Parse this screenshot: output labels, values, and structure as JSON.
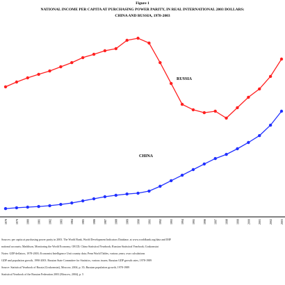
{
  "chart_data": {
    "type": "line",
    "figure_label": "Figure 1",
    "title": "NATIONAL INCOME PER CAPITA AT PURCHASING POWER PARITY, IN REAL INTERNATIONAL 2003 DOLLARS:",
    "subtitle": "CHINA AND RUSSIA, 1978-2003",
    "categories": [
      "1978",
      "1979",
      "1980",
      "1981",
      "1982",
      "1983",
      "1984",
      "1985",
      "1986",
      "1987",
      "1988",
      "1989",
      "1990",
      "1991",
      "1992",
      "1993",
      "1994",
      "1995",
      "1996",
      "1997",
      "1998",
      "1999",
      "2000",
      "2001",
      "2002",
      "2003"
    ],
    "series": [
      {
        "name": "RUSSIA",
        "color": "#ff2020",
        "values": [
          6170,
          6400,
          6600,
          6770,
          6930,
          7130,
          7330,
          7570,
          7730,
          7900,
          8000,
          8400,
          8500,
          8270,
          7330,
          6330,
          5330,
          5070,
          4930,
          5000,
          4670,
          5170,
          5670,
          6070,
          6670,
          7500
        ]
      },
      {
        "name": "CHINA",
        "color": "#2030ff",
        "values": [
          330,
          370,
          400,
          430,
          470,
          530,
          600,
          700,
          800,
          900,
          970,
          1030,
          1070,
          1170,
          1400,
          1670,
          1930,
          2200,
          2470,
          2730,
          2930,
          3200,
          3500,
          3830,
          4330,
          5000
        ]
      }
    ],
    "ylim": [
      0,
      9000
    ],
    "notes": [
      "Sources: per capita at purchasing power parity in 2003. The World Bank, World Development Indicators Database, at www.worldbank.org/data and IMF",
      "national accounts; Maddison, Monitoring the World Economy; OECD; China Statistical Yearbook; Russian Statistical Yearbook; Goskomstat",
      "Notes: GDP deflators, 1978-2003; Economist Intelligence Unit country data; Penn World Tables, various years; own calculations",
      "GDP and population growth, 1990-2003. Russian State Committee for Statistics, various issues; Russian GDP growth rates, 1978-1989",
      "Source: Statistical Yearbook of Russia (Goskomstat), Moscow, 2004, p. 35; Russian population growth, 1978-1989",
      "Statistical Yearbook of the Russian Federation 2003 (Moscow, 2004), p. 5"
    ]
  }
}
